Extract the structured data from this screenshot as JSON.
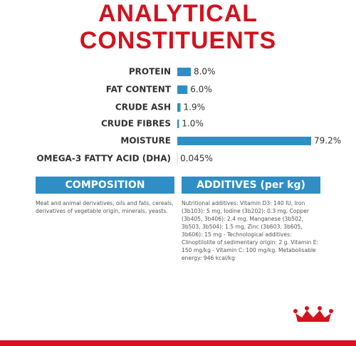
{
  "chart_data": {
    "type": "bar",
    "orientation": "horizontal",
    "title": "ANALYTICAL CONSTITUENTS",
    "title_color": "#d2121e",
    "color": "#2f8fc4",
    "categories": [
      "PROTEIN",
      "FAT CONTENT",
      "CRUDE ASH",
      "CRUDE FIBRES",
      "MOISTURE",
      "OMEGA-3 FATTY ACID (DHA)"
    ],
    "values": [
      8.0,
      6.0,
      1.9,
      1.0,
      79.2,
      0.045
    ],
    "value_labels": [
      "8.0%",
      "6.0%",
      "1.9%",
      "1.0%",
      "79.2%",
      "0.045%"
    ]
  },
  "composition": {
    "title": "COMPOSITION",
    "text": "Meat and animal derivatives, oils and fats, cereals, derivatives of vegetable origin, minerals, yeasts."
  },
  "additives": {
    "title": "ADDITIVES (per kg)",
    "text": "Nutritional additives: Vitamin D3: 140 IU, Iron (3b103): 5 mg, Iodine (3b202): 0.3 mg, Copper (3b405, 3b406): 2.4 mg, Manganese (3b502, 3b503, 3b504): 1.5 mg, Zinc (3b603, 3b605, 3b606): 15 mg - Technological additives: Clinoptilolite of sedimentary origin: 2 g. Vitamin E: 150 mg/kg - Vitamin C: 100 mg/kg. Metabolisable energy: 946 kcal/kg"
  }
}
